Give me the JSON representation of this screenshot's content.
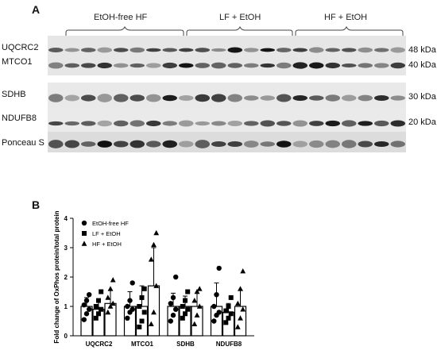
{
  "panel_a": {
    "letter": "A",
    "groups": [
      "EtOH-free HF",
      "LF + EtOH",
      "HF + EtOH"
    ],
    "proteins": [
      "UQCRC2",
      "MTCO1",
      "SDHB",
      "NDUFB8",
      "Ponceau S"
    ],
    "kda": [
      "48 kDa",
      "40 kDa",
      "30 kDa",
      "20 kDa"
    ]
  },
  "panel_b": {
    "letter": "B"
  },
  "chart_data": {
    "type": "bar",
    "ylabel": "Fold change of OxPhos protein/total protein",
    "ylim": [
      0,
      4
    ],
    "yticks": [
      "0",
      "1",
      "2",
      "3",
      "4"
    ],
    "categories": [
      "UQCRC2",
      "MTCO1",
      "SDHB",
      "NDUFB8"
    ],
    "legend_position": "top-left",
    "series": [
      {
        "name": "EtOH-free HF",
        "marker": "circle",
        "values": [
          1.0,
          1.0,
          1.0,
          1.0
        ],
        "errors": [
          0.3,
          0.5,
          0.45,
          0.8
        ],
        "points": [
          [
            0.55,
            0.75,
            0.9,
            1.05,
            1.2,
            1.4
          ],
          [
            0.6,
            0.8,
            0.9,
            1.0,
            1.2,
            1.8
          ],
          [
            0.5,
            0.7,
            0.9,
            1.1,
            1.3,
            2.0
          ],
          [
            0.5,
            0.7,
            0.8,
            1.0,
            1.4,
            2.3
          ]
        ]
      },
      {
        "name": "LF + EtOH",
        "marker": "square",
        "values": [
          0.9,
          1.0,
          1.0,
          0.8
        ],
        "errors": [
          0.3,
          0.7,
          0.35,
          0.3
        ],
        "points": [
          [
            0.6,
            0.75,
            0.9,
            1.0,
            1.2,
            1.5
          ],
          [
            0.3,
            0.5,
            0.8,
            1.0,
            1.3,
            1.6
          ],
          [
            0.6,
            0.75,
            0.9,
            1.0,
            1.2,
            1.5
          ],
          [
            0.45,
            0.6,
            0.75,
            0.85,
            1.0,
            1.3
          ]
        ]
      },
      {
        "name": "HF + EtOH",
        "marker": "triangle",
        "values": [
          1.1,
          1.7,
          1.0,
          1.0
        ],
        "errors": [
          0.45,
          1.3,
          0.45,
          0.55
        ],
        "points": [
          [
            0.8,
            1.0,
            1.1,
            1.3,
            1.6,
            1.9
          ],
          [
            0.4,
            0.8,
            1.7,
            2.6,
            3.1,
            3.5
          ],
          [
            0.4,
            0.7,
            1.0,
            1.2,
            1.5,
            1.6
          ],
          [
            0.3,
            0.6,
            0.9,
            1.1,
            1.6,
            2.2
          ]
        ]
      }
    ]
  }
}
